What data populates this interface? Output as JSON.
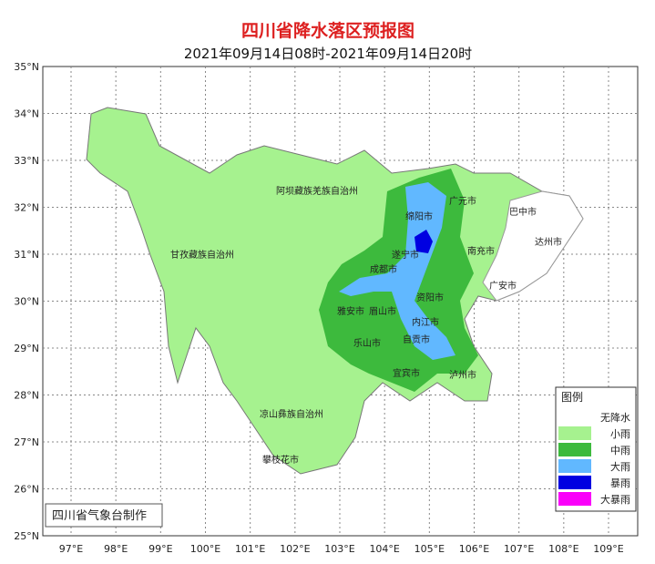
{
  "header": {
    "title": "四川省降水落区预报图",
    "subtitle": "2021年09月14日08时-2021年09月14日20时"
  },
  "axes": {
    "lat_labels": [
      "35°N",
      "34°N",
      "33°N",
      "32°N",
      "31°N",
      "30°N",
      "29°N",
      "28°N",
      "27°N",
      "26°N",
      "25°N"
    ],
    "lon_labels": [
      "97°E",
      "98°E",
      "99°E",
      "100°E",
      "101°E",
      "102°E",
      "103°E",
      "104°E",
      "105°E",
      "106°E",
      "107°E",
      "108°E",
      "109°E"
    ]
  },
  "regions": [
    "阿坝藏族羌族自治州",
    "甘孜藏族自治州",
    "凉山彝族自治州",
    "攀枝花市",
    "广元市",
    "巴中市",
    "绵阳市",
    "遂宁市",
    "南充市",
    "达州市",
    "成都市",
    "广安市",
    "雅安市",
    "眉山市",
    "资阳市",
    "内江市",
    "自贡市",
    "乐山市",
    "宜宾市",
    "泸州市"
  ],
  "legend": {
    "title": "图例",
    "items": [
      {
        "label": "无降水",
        "color": "#ffffff"
      },
      {
        "label": "小雨",
        "color": "#a6f28f"
      },
      {
        "label": "中雨",
        "color": "#3dba3d"
      },
      {
        "label": "大雨",
        "color": "#61b8ff"
      },
      {
        "label": "暴雨",
        "color": "#0000e1"
      },
      {
        "label": "大暴雨",
        "color": "#fa00fa"
      }
    ]
  },
  "credit": "四川省气象台制作"
}
